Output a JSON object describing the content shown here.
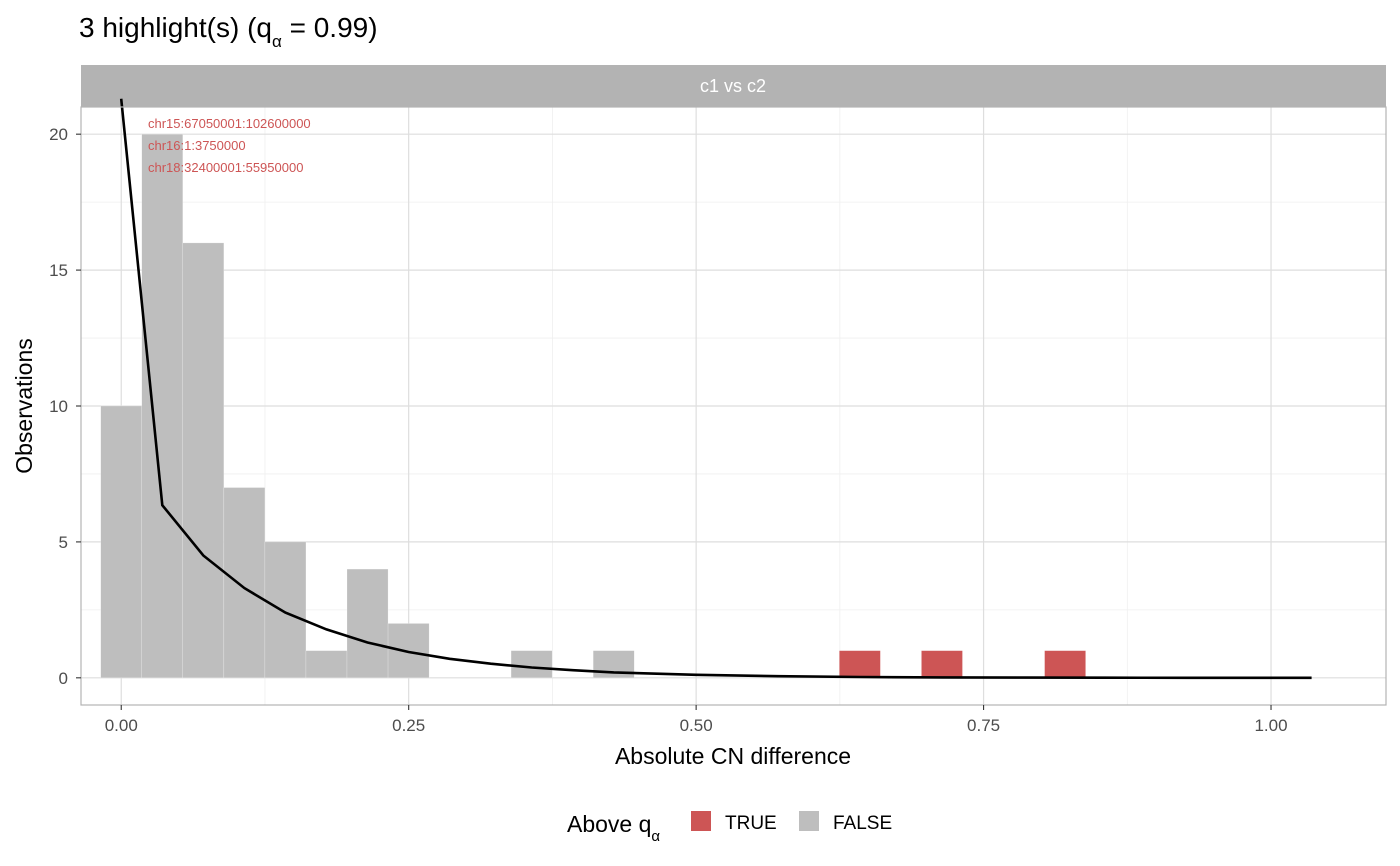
{
  "chart_data": {
    "type": "bar",
    "title": {
      "prefix": "3 highlight(s) (q",
      "subscript": "α",
      "suffix": " = 0.99)"
    },
    "facet_label": "c1 vs c2",
    "xlabel": "Absolute CN difference",
    "ylabel": "Observations",
    "xlim": [
      -0.035,
      1.1
    ],
    "ylim": [
      -1.0,
      21.0
    ],
    "xticks": [
      0.0,
      0.25,
      0.5,
      0.75,
      1.0
    ],
    "xtick_labels": [
      "0.00",
      "0.25",
      "0.50",
      "0.75",
      "1.00"
    ],
    "xticks_minor": [
      0.125,
      0.375,
      0.625,
      0.875
    ],
    "yticks": [
      0,
      5,
      10,
      15,
      20
    ],
    "ytick_labels": [
      "0",
      "5",
      "10",
      "15",
      "20"
    ],
    "yticks_minor": [
      2.5,
      7.5,
      12.5,
      17.5
    ],
    "grid": true,
    "bin_width": 0.0357,
    "bins": [
      {
        "x": 0.0,
        "count": 10,
        "above": false
      },
      {
        "x": 0.0357,
        "count": 20,
        "above": false
      },
      {
        "x": 0.0714,
        "count": 16,
        "above": false
      },
      {
        "x": 0.1071,
        "count": 7,
        "above": false
      },
      {
        "x": 0.1428,
        "count": 5,
        "above": false
      },
      {
        "x": 0.1785,
        "count": 1,
        "above": false
      },
      {
        "x": 0.2142,
        "count": 4,
        "above": false
      },
      {
        "x": 0.2499,
        "count": 2,
        "above": false
      },
      {
        "x": 0.3569,
        "count": 1,
        "above": false
      },
      {
        "x": 0.4283,
        "count": 1,
        "above": false
      },
      {
        "x": 0.6424,
        "count": 1,
        "above": true
      },
      {
        "x": 0.7138,
        "count": 1,
        "above": true
      },
      {
        "x": 0.8209,
        "count": 1,
        "above": true
      }
    ],
    "fit_curve": {
      "x": [
        0.0,
        0.0357,
        0.0714,
        0.1071,
        0.1428,
        0.1785,
        0.2142,
        0.2499,
        0.2856,
        0.3213,
        0.357,
        0.3927,
        0.4284,
        0.4998,
        0.5712,
        0.6426,
        0.714,
        0.7854,
        0.8568,
        0.9282,
        1.0353
      ],
      "y": [
        21.3,
        6.35,
        4.5,
        3.3,
        2.4,
        1.78,
        1.3,
        0.95,
        0.7,
        0.52,
        0.38,
        0.28,
        0.2,
        0.11,
        0.06,
        0.03,
        0.015,
        0.008,
        0.004,
        0.002,
        0.0
      ]
    },
    "annotations": [
      "chr15:67050001:102600000",
      "chr16:1:3750000",
      "chr18:32400001:55950000"
    ],
    "legend": {
      "title": {
        "prefix": "Above q",
        "subscript": "α"
      },
      "placement": "bottom",
      "items": [
        {
          "label": "TRUE",
          "color": "#cd5555"
        },
        {
          "label": "FALSE",
          "color": "#bebebe"
        }
      ]
    },
    "colors": {
      "true": "#cd5555",
      "false": "#bebebe",
      "strip": "#b3b3b3",
      "curve": "#000000",
      "panel_border": "#b3b3b3",
      "grid_major": "#dedede",
      "grid_minor": "#efefef"
    }
  }
}
